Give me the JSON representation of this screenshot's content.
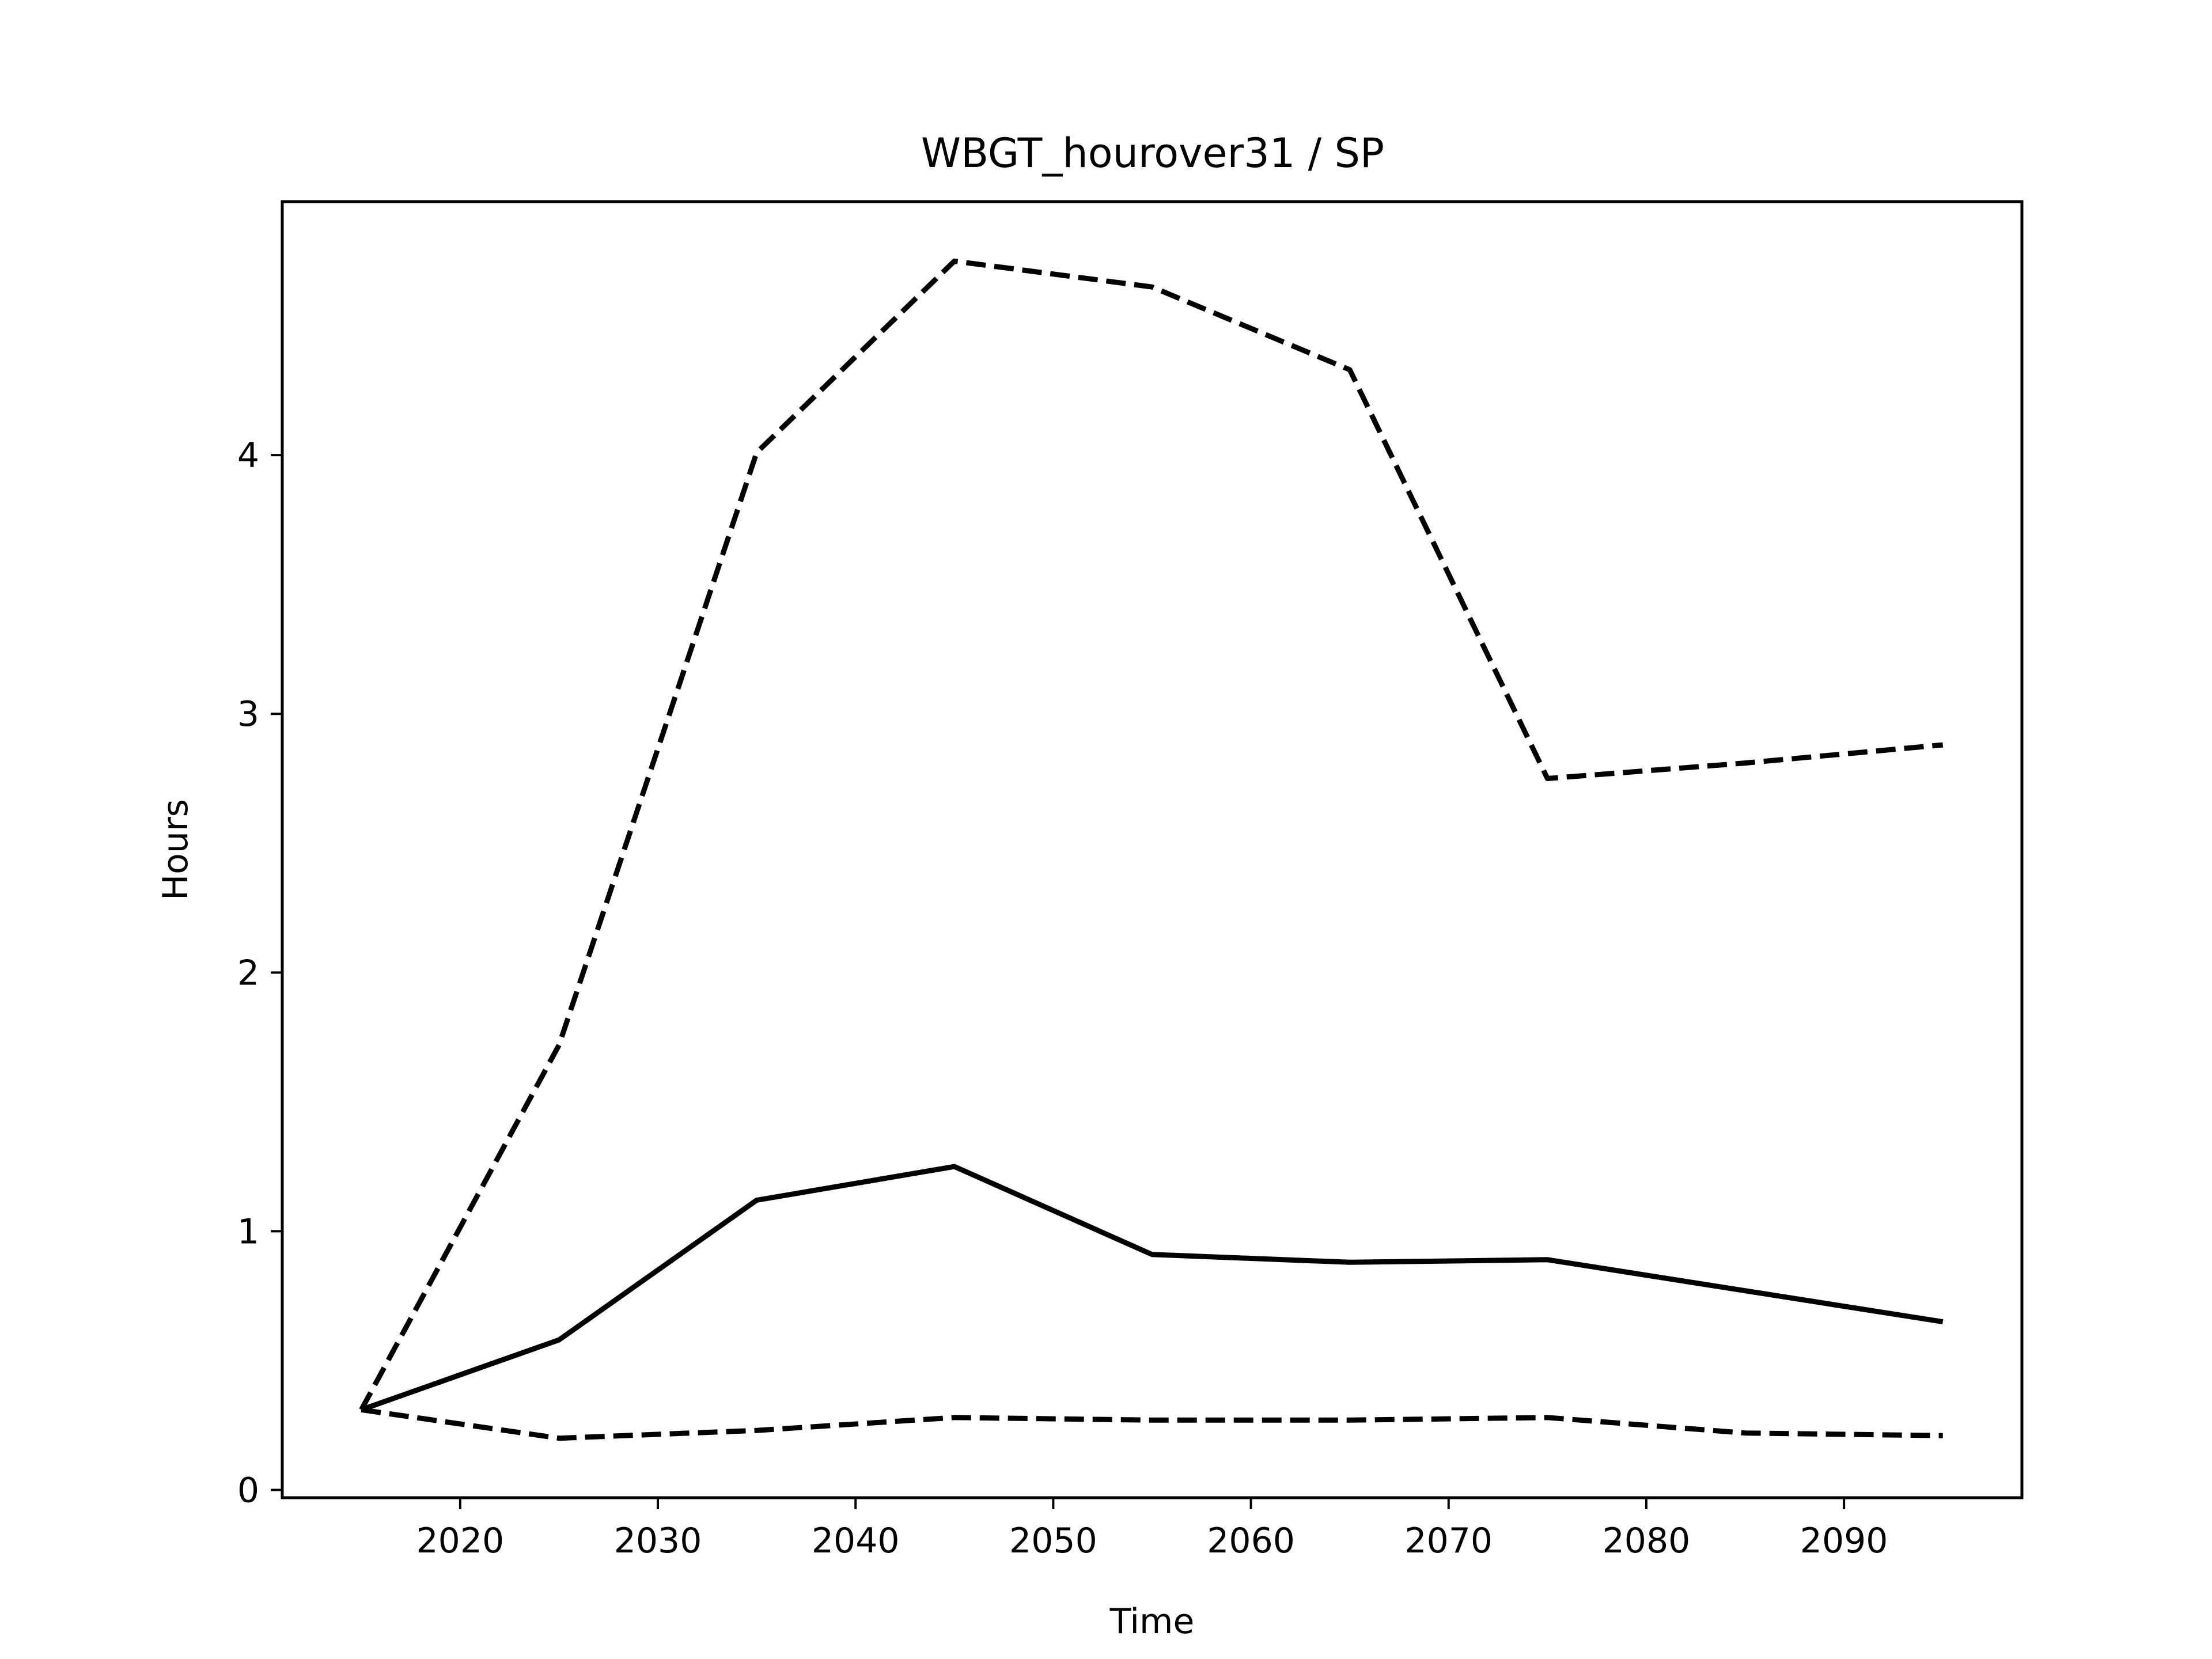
{
  "chart_data": {
    "type": "line",
    "title": "WBGT_hourover31 / SP",
    "xlabel": "Time",
    "ylabel": "Hours",
    "xlim": [
      2011,
      2099
    ],
    "ylim": [
      -0.03,
      4.98
    ],
    "xticks": [
      2020,
      2030,
      2040,
      2050,
      2060,
      2070,
      2080,
      2090
    ],
    "xtick_labels": [
      "2020",
      "2030",
      "2040",
      "2050",
      "2060",
      "2070",
      "2080",
      "2090"
    ],
    "yticks": [
      0,
      1,
      2,
      3,
      4
    ],
    "ytick_labels": [
      "0",
      "1",
      "2",
      "3",
      "4"
    ],
    "grid": false,
    "legend": "none",
    "x": [
      2015,
      2025,
      2035,
      2045,
      2055,
      2065,
      2075,
      2085,
      2095
    ],
    "series": [
      {
        "style": "dashed",
        "color": "#000000",
        "values": [
          0.31,
          1.72,
          4.01,
          4.75,
          4.65,
          4.33,
          2.75,
          2.81,
          2.88
        ]
      },
      {
        "style": "solid",
        "color": "#000000",
        "values": [
          0.31,
          0.58,
          1.12,
          1.25,
          0.91,
          0.88,
          0.89,
          0.77,
          0.65
        ]
      },
      {
        "style": "dashed",
        "color": "#000000",
        "values": [
          0.31,
          0.2,
          0.23,
          0.28,
          0.27,
          0.27,
          0.28,
          0.22,
          0.21
        ]
      }
    ]
  }
}
